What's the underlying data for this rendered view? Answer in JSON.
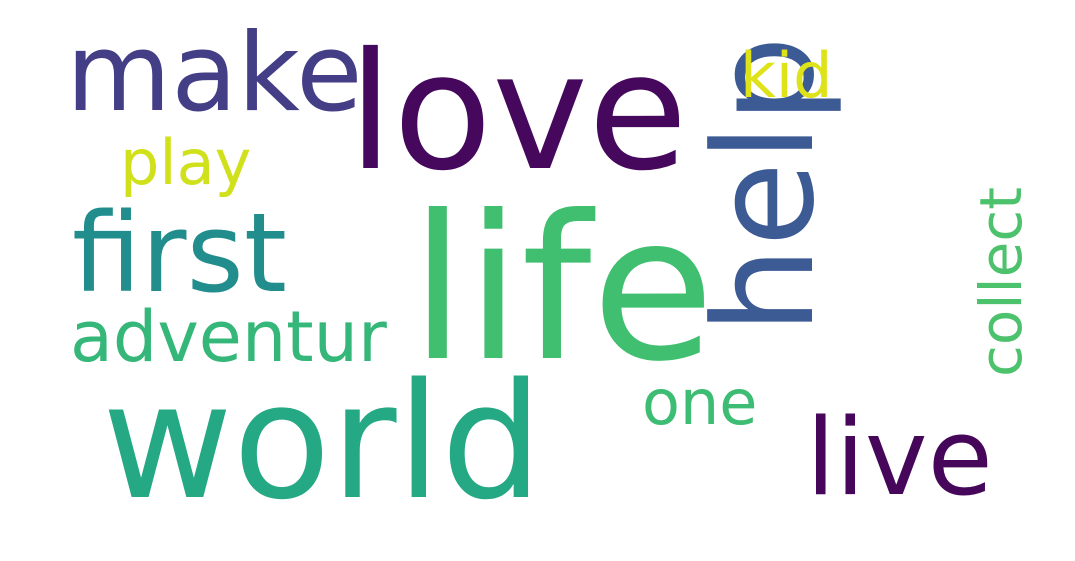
{
  "word_cloud": {
    "words": [
      {
        "id": "life",
        "text": "life",
        "color": "#40bf70"
      },
      {
        "id": "world",
        "text": "world",
        "color": "#25a884"
      },
      {
        "id": "love",
        "text": "love",
        "color": "#46085c"
      },
      {
        "id": "help",
        "text": "help",
        "color": "#3c5a94"
      },
      {
        "id": "make",
        "text": "make",
        "color": "#433e85"
      },
      {
        "id": "first",
        "text": "first",
        "color": "#218e8d"
      },
      {
        "id": "live",
        "text": "live",
        "color": "#46075a"
      },
      {
        "id": "adventur",
        "text": "adventur",
        "color": "#35b779"
      },
      {
        "id": "collect",
        "text": "collect",
        "color": "#4cc26c"
      },
      {
        "id": "one",
        "text": "one",
        "color": "#3dbc74"
      },
      {
        "id": "kid",
        "text": "kid",
        "color": "#dde318"
      },
      {
        "id": "play",
        "text": "play",
        "color": "#d0e11c"
      }
    ],
    "vertical_words": [
      "help",
      "collect"
    ],
    "background": "#ffffff"
  }
}
